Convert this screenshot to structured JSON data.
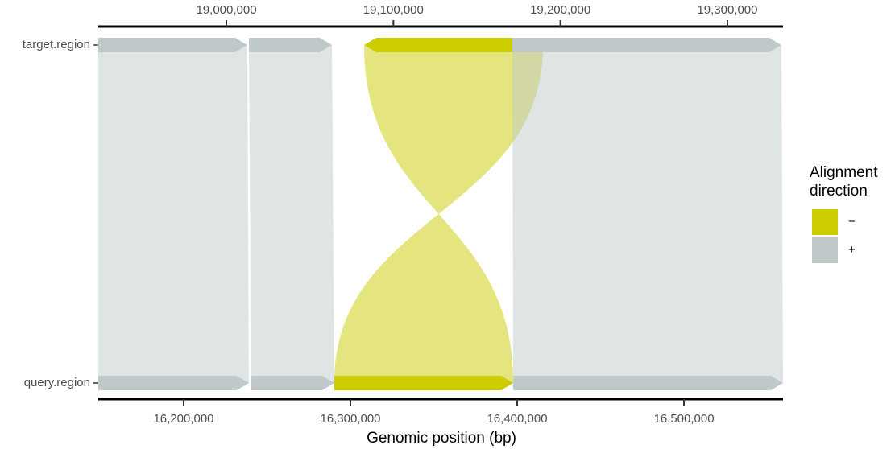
{
  "chart_data": {
    "type": "synteny",
    "x_label": "Genomic position (bp)",
    "regions": [
      "target.region",
      "query.region"
    ],
    "legend_title": "Alignment direction",
    "series": [
      {
        "name": "−",
        "color": "#cccc00"
      },
      {
        "name": "+",
        "color": "#bfc9c9"
      }
    ],
    "alignments": {
      "target_start": [
        18923300,
        19013500,
        19082500,
        19171200
      ],
      "target_end": [
        19012500,
        19063200,
        19189600,
        19332300
      ],
      "query_start": [
        16148800,
        16240600,
        16290300,
        16397600
      ],
      "query_end": [
        16239100,
        16290300,
        16397600,
        16559400
      ],
      "strand": [
        "+",
        "+",
        "−",
        "+"
      ]
    },
    "xlim": [
      16148800,
      16559400
    ],
    "xticks": [
      {
        "value": 16200000,
        "label": "16,200,000"
      },
      {
        "value": 16300000,
        "label": "16,300,000"
      },
      {
        "value": 16400000,
        "label": "16,400,000"
      },
      {
        "value": 16500000,
        "label": "16,500,000"
      }
    ],
    "x2lim": [
      18923300,
      19333300
    ],
    "x2ticks": [
      {
        "value": 19000000,
        "label": "19,000,000"
      },
      {
        "value": 19100000,
        "label": "19,100,000"
      },
      {
        "value": 19200000,
        "label": "19,200,000"
      },
      {
        "value": 19300000,
        "label": "19,300,000"
      }
    ]
  }
}
